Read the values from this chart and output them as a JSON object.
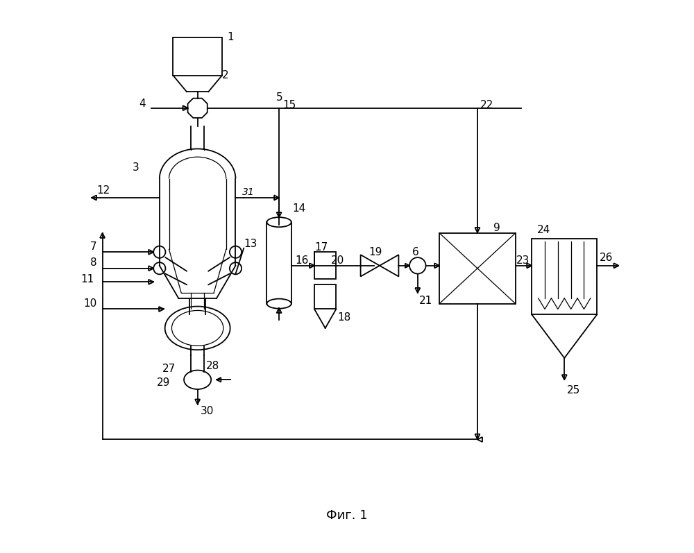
{
  "title": "Фиг. 1",
  "background_color": "#ffffff",
  "line_color": "#000000",
  "lw": 1.3,
  "lw2": 0.9
}
